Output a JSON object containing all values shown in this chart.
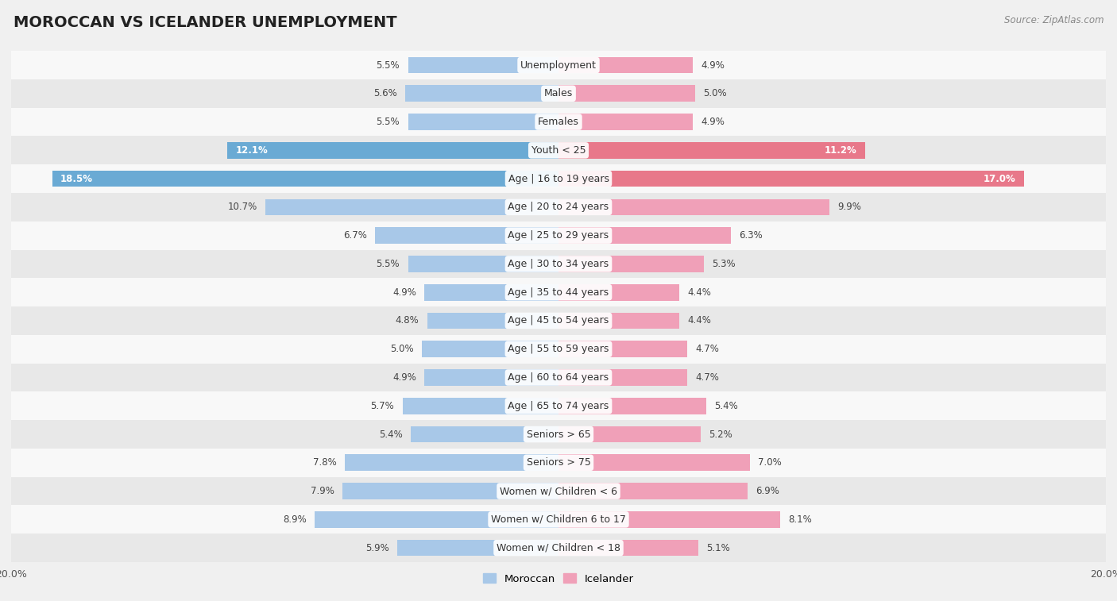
{
  "title": "MOROCCAN VS ICELANDER UNEMPLOYMENT",
  "source": "Source: ZipAtlas.com",
  "categories": [
    "Unemployment",
    "Males",
    "Females",
    "Youth < 25",
    "Age | 16 to 19 years",
    "Age | 20 to 24 years",
    "Age | 25 to 29 years",
    "Age | 30 to 34 years",
    "Age | 35 to 44 years",
    "Age | 45 to 54 years",
    "Age | 55 to 59 years",
    "Age | 60 to 64 years",
    "Age | 65 to 74 years",
    "Seniors > 65",
    "Seniors > 75",
    "Women w/ Children < 6",
    "Women w/ Children 6 to 17",
    "Women w/ Children < 18"
  ],
  "moroccan": [
    5.5,
    5.6,
    5.5,
    12.1,
    18.5,
    10.7,
    6.7,
    5.5,
    4.9,
    4.8,
    5.0,
    4.9,
    5.7,
    5.4,
    7.8,
    7.9,
    8.9,
    5.9
  ],
  "icelander": [
    4.9,
    5.0,
    4.9,
    11.2,
    17.0,
    9.9,
    6.3,
    5.3,
    4.4,
    4.4,
    4.7,
    4.7,
    5.4,
    5.2,
    7.0,
    6.9,
    8.1,
    5.1
  ],
  "moroccan_color": "#a8c8e8",
  "icelander_color": "#f0a0b8",
  "moroccan_highlight_color": "#6aaad4",
  "icelander_highlight_color": "#e8788a",
  "highlight_rows": [
    3,
    4
  ],
  "xlim": 20.0,
  "background_color": "#f0f0f0",
  "row_bg_light": "#f8f8f8",
  "row_bg_dark": "#e8e8e8",
  "title_fontsize": 14,
  "label_fontsize": 9,
  "value_fontsize": 8.5,
  "legend_fontsize": 9.5,
  "source_fontsize": 8.5
}
